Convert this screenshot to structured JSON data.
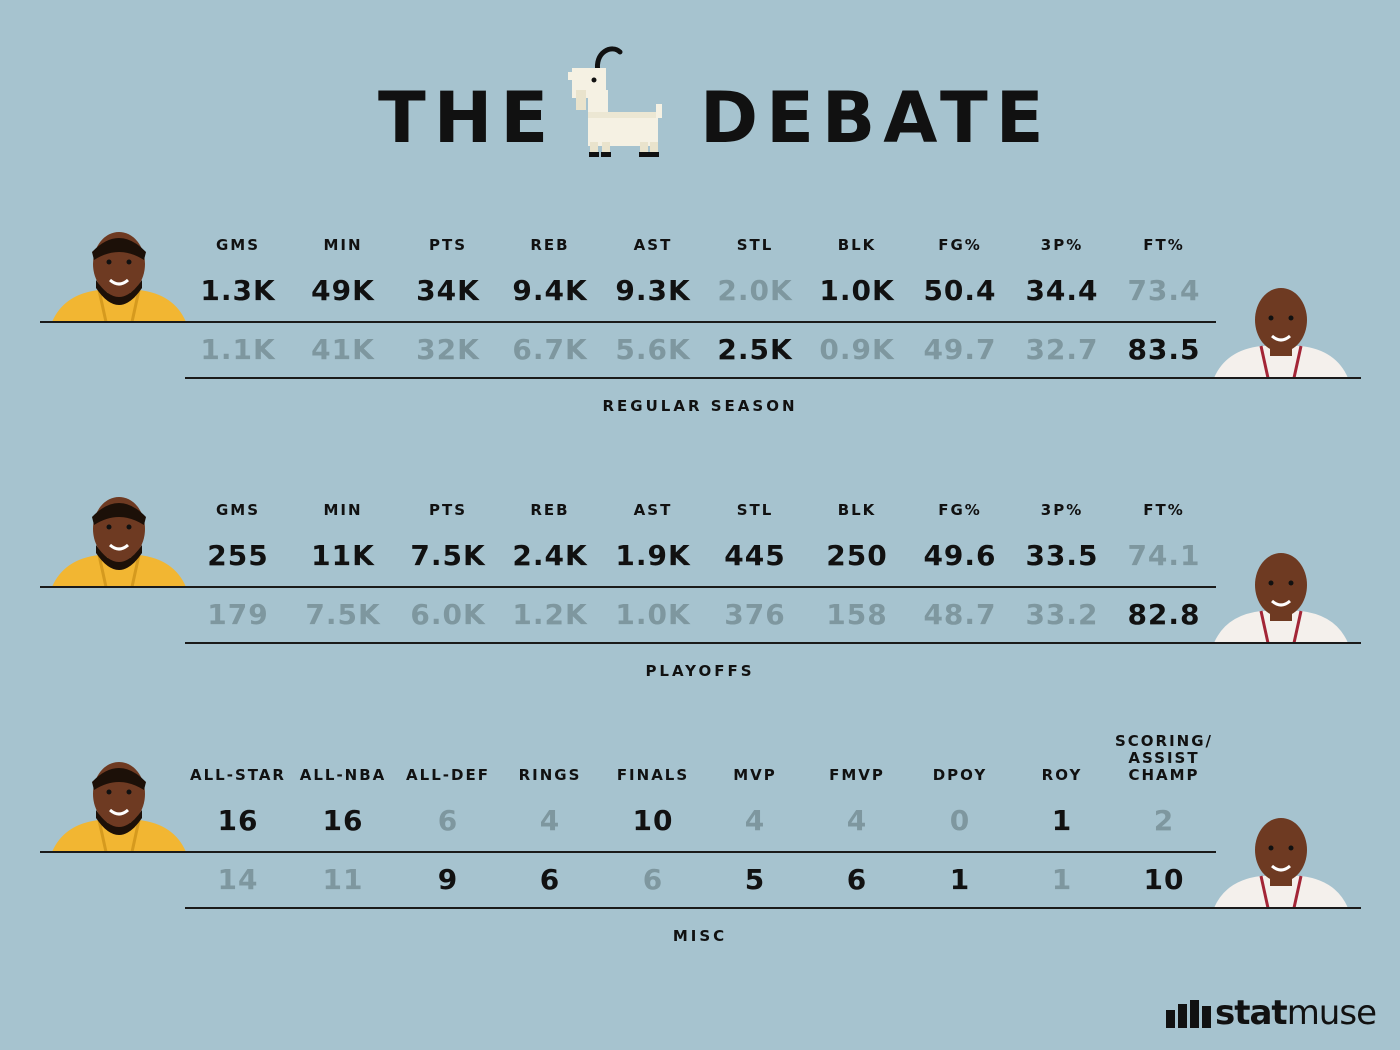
{
  "title": {
    "left": "THE",
    "right": "DEBATE"
  },
  "sections": [
    {
      "label": "REGULAR SEASON",
      "headers": [
        "GMS",
        "MIN",
        "PTS",
        "REB",
        "AST",
        "STL",
        "BLK",
        "FG%",
        "3P%",
        "FT%"
      ],
      "player1": [
        "1.3K",
        "49K",
        "34K",
        "9.4K",
        "9.3K",
        "2.0K",
        "1.0K",
        "50.4",
        "34.4",
        "73.4"
      ],
      "player2": [
        "1.1K",
        "41K",
        "32K",
        "6.7K",
        "5.6K",
        "2.5K",
        "0.9K",
        "49.7",
        "32.7",
        "83.5"
      ],
      "player1_wins": [
        true,
        true,
        true,
        true,
        true,
        false,
        true,
        true,
        true,
        false
      ]
    },
    {
      "label": "PLAYOFFS",
      "headers": [
        "GMS",
        "MIN",
        "PTS",
        "REB",
        "AST",
        "STL",
        "BLK",
        "FG%",
        "3P%",
        "FT%"
      ],
      "player1": [
        "255",
        "11K",
        "7.5K",
        "2.4K",
        "1.9K",
        "445",
        "250",
        "49.6",
        "33.5",
        "74.1"
      ],
      "player2": [
        "179",
        "7.5K",
        "6.0K",
        "1.2K",
        "1.0K",
        "376",
        "158",
        "48.7",
        "33.2",
        "82.8"
      ],
      "player1_wins": [
        true,
        true,
        true,
        true,
        true,
        true,
        true,
        true,
        true,
        false
      ]
    },
    {
      "label": "MISC",
      "headers": [
        "ALL-STAR",
        "ALL-NBA",
        "ALL-DEF",
        "RINGS",
        "FINALS",
        "MVP",
        "FMVP",
        "DPOY",
        "ROY",
        "SCORING/\nASSIST\nCHAMP"
      ],
      "player1": [
        "16",
        "16",
        "6",
        "4",
        "10",
        "4",
        "4",
        "0",
        "1",
        "2"
      ],
      "player2": [
        "14",
        "11",
        "9",
        "6",
        "6",
        "5",
        "6",
        "1",
        "1",
        "10"
      ],
      "player1_wins": [
        true,
        true,
        false,
        false,
        true,
        false,
        false,
        false,
        null,
        false
      ]
    }
  ],
  "brand": {
    "bold": "stat",
    "light": "muse"
  },
  "colors": {
    "background": "#a6c3cf",
    "winner": "#111111",
    "loser": "#7e979f",
    "player1_jersey": "#f2b632",
    "player2_jersey": "#f4f0ec",
    "skin": "#6e3a22"
  }
}
